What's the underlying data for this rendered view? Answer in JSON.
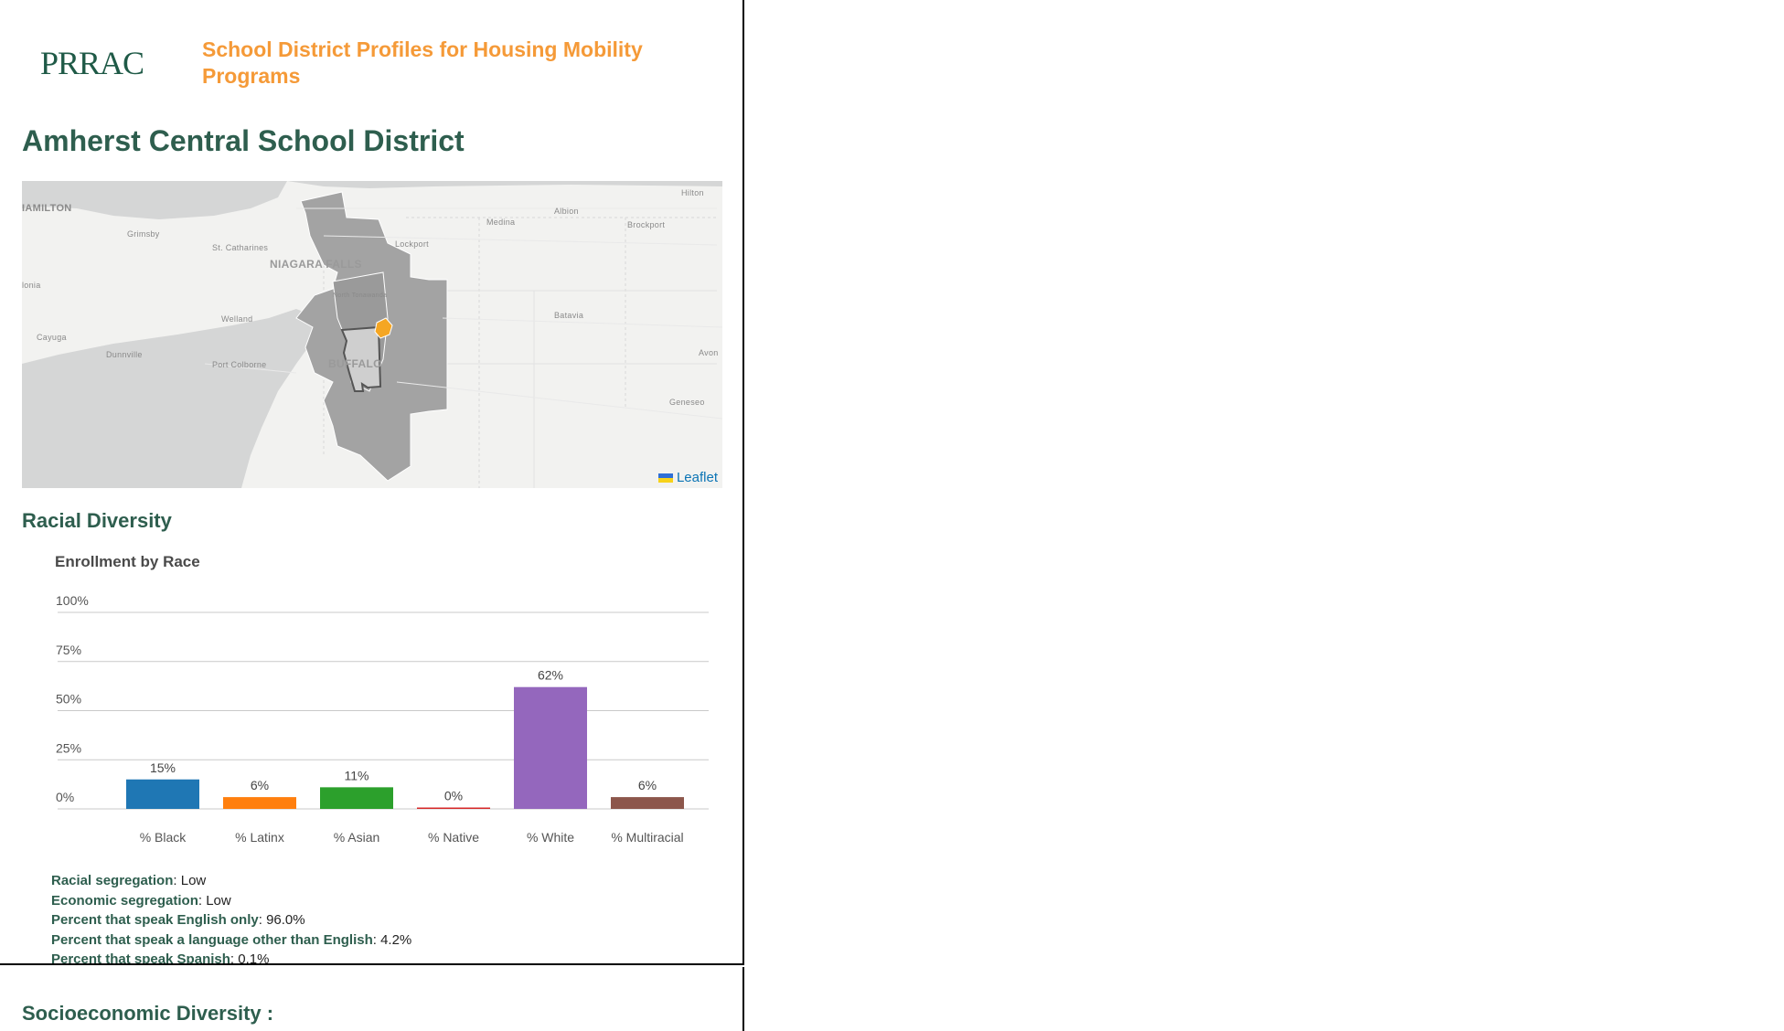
{
  "header": {
    "logo_text": "PRRAC",
    "site_title": "School District Profiles for Housing Mobility Programs"
  },
  "district_name": "Amherst Central School District",
  "map": {
    "labels": {
      "hamilton": "IAMILTON",
      "grimsby": "Grimsby",
      "st_catharines": "St. Catharines",
      "niagara_falls": "NIAGARA FALLS",
      "welland": "Welland",
      "cayuga": "Cayuga",
      "dunnville": "Dunnville",
      "port_colborne": "Port Colborne",
      "buffalo": "BUFFALO",
      "lockport": "Lockport",
      "medina": "Medina",
      "albion": "Albion",
      "brockport": "Brockport",
      "hilton": "Hilton",
      "batavia": "Batavia",
      "avon": "Avon",
      "geneseo": "Geneseo",
      "north_tonawanda": "North Tonawanda",
      "caledonia": "lonia"
    },
    "attribution": "Leaflet"
  },
  "racial_section": {
    "title": "Racial Diversity"
  },
  "chart_data": {
    "type": "bar",
    "title": "Enrollment by Race",
    "categories": [
      "% Black",
      "% Latinx",
      "% Asian",
      "% Native",
      "% White",
      "% Multiracial"
    ],
    "values": [
      15,
      6,
      11,
      0,
      62,
      6
    ],
    "data_labels": [
      "15%",
      "6%",
      "11%",
      "0%",
      "62%",
      "6%"
    ],
    "colors": [
      "#1f77b4",
      "#ff7f0e",
      "#2ca02c",
      "#d62728",
      "#9467bd",
      "#8c564b"
    ],
    "y_ticks": [
      "0%",
      "25%",
      "50%",
      "75%",
      "100%"
    ],
    "ylim": [
      0,
      100
    ],
    "grid": true
  },
  "stats": [
    {
      "key": "Racial segregation",
      "value": ": Low"
    },
    {
      "key": "Economic segregation",
      "value": ": Low"
    },
    {
      "key": "Percent that speak English only",
      "value": ": 96.0%"
    },
    {
      "key": "Percent that speak a language other than English",
      "value": ": 4.2%"
    },
    {
      "key": "Percent that speak Spanish",
      "value": ": 0.1%"
    }
  ],
  "socio_section": {
    "title": "Socioeconomic Diversity :"
  }
}
